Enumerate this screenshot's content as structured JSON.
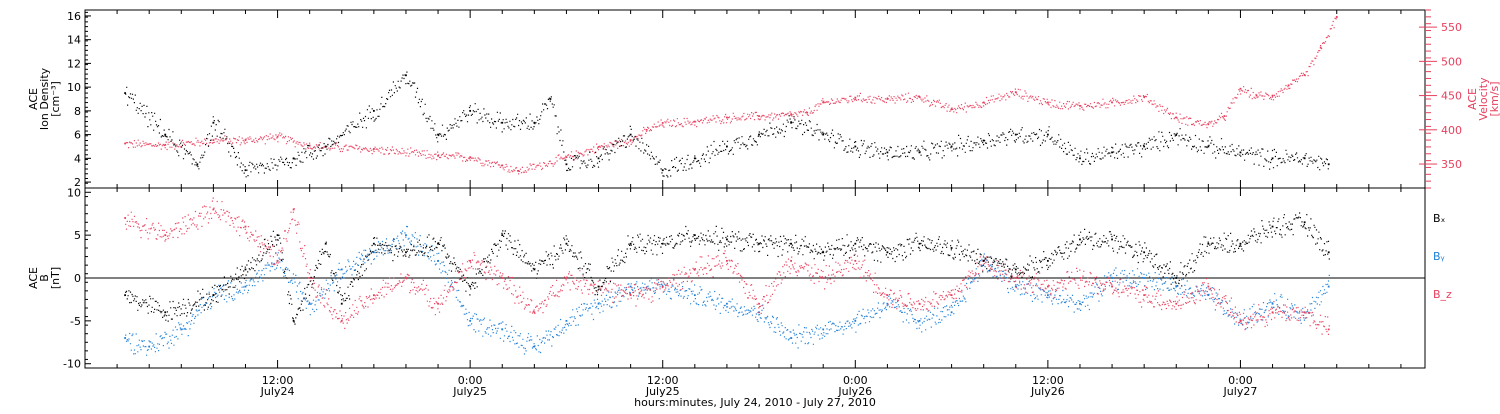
{
  "colors": {
    "black": "#000000",
    "pink": "#e8405e",
    "blue": "#1f7fd6",
    "axis": "#000000"
  },
  "chart_data": [
    {
      "type": "scatter",
      "panel": "top",
      "ylabel_lines": [
        "ACE",
        "Ion Density",
        "[cm⁻³]"
      ],
      "ylabel_right_lines": [
        "ACE",
        "Velocity",
        "[km/s]"
      ],
      "ylim": [
        1.5,
        16.5
      ],
      "yticks": [
        2,
        4,
        6,
        8,
        10,
        12,
        14,
        16
      ],
      "ylim_right": [
        315,
        575
      ],
      "yticks_right": [
        350,
        400,
        450,
        500,
        550
      ],
      "series": [
        {
          "key": "density",
          "color": "black",
          "x": [
            2.5,
            5,
            7,
            8,
            10,
            13,
            15,
            18,
            20,
            22,
            24,
            26,
            28,
            29,
            30,
            32,
            34,
            36,
            38,
            40,
            42,
            44,
            46,
            48,
            50,
            52,
            54,
            56,
            58,
            60,
            62,
            64,
            66,
            68,
            70,
            72,
            74,
            76,
            77.5
          ],
          "y": [
            9.5,
            6,
            3.5,
            7,
            3,
            4,
            5,
            8,
            11,
            6,
            8,
            7,
            7,
            9,
            3.5,
            4,
            6,
            3,
            4,
            5,
            6,
            7,
            6,
            5,
            4.5,
            4.5,
            5,
            5.5,
            6,
            6,
            4,
            4.5,
            5,
            6,
            5,
            4.5,
            4,
            4,
            3.5
          ]
        },
        {
          "key": "velocity",
          "color": "pink",
          "axis": "right",
          "x": [
            2.5,
            5,
            8,
            10,
            12,
            14,
            18,
            22,
            24,
            26,
            27,
            30,
            32,
            34,
            35,
            36,
            38,
            40,
            42,
            44,
            45,
            46,
            48,
            50,
            52,
            54,
            56,
            58,
            60,
            62,
            64,
            66,
            68,
            70,
            71,
            72,
            73,
            74,
            75,
            76,
            77,
            78
          ],
          "y": [
            380,
            378,
            385,
            385,
            390,
            377,
            372,
            362,
            360,
            348,
            340,
            360,
            375,
            385,
            400,
            410,
            412,
            418,
            420,
            422,
            425,
            440,
            447,
            445,
            448,
            430,
            440,
            455,
            440,
            435,
            440,
            448,
            418,
            408,
            420,
            460,
            450,
            450,
            465,
            480,
            520,
            565
          ]
        }
      ]
    },
    {
      "type": "scatter",
      "panel": "bottom",
      "ylabel_lines": [
        "ACE",
        "B",
        "[nT]"
      ],
      "ylim": [
        -10.5,
        10.5
      ],
      "yticks": [
        -10,
        -5,
        0,
        5,
        10
      ],
      "series": [
        {
          "name": "Bₓ",
          "color": "black",
          "x": [
            2.5,
            5,
            8,
            10,
            12,
            13,
            15,
            16,
            18,
            20,
            22,
            24,
            26,
            28,
            30,
            32,
            34,
            36,
            38,
            40,
            42,
            44,
            46,
            48,
            50,
            52,
            54,
            56,
            58,
            60,
            62,
            64,
            66,
            68,
            70,
            72,
            74,
            76,
            77.5
          ],
          "y": [
            -2,
            -4,
            -2,
            1,
            5,
            -5,
            4,
            -3,
            4,
            3,
            4,
            -1,
            5,
            1,
            4,
            -1,
            4,
            4,
            5,
            4.5,
            4,
            4,
            3,
            4,
            3,
            4,
            3.5,
            2,
            1,
            2,
            4.5,
            4.5,
            3,
            0,
            4,
            4,
            6,
            6.5,
            3
          ]
        },
        {
          "name": "Bᵧ",
          "color": "blue",
          "x": [
            2.5,
            4,
            6,
            8,
            10,
            12,
            14,
            16,
            18,
            20,
            22,
            24,
            26,
            28,
            30,
            32,
            34,
            36,
            38,
            40,
            42,
            44,
            46,
            48,
            50,
            52,
            54,
            56,
            58,
            60,
            62,
            64,
            66,
            68,
            70,
            72,
            74,
            76,
            77.5
          ],
          "y": [
            -7,
            -8,
            -6,
            -2,
            -1,
            2,
            -3,
            1,
            3,
            5,
            2,
            -5,
            -6,
            -8,
            -5,
            -3,
            -1,
            -1,
            -2,
            -3,
            -4,
            -7,
            -6,
            -5,
            -3,
            -5,
            -4,
            2,
            -1,
            -2,
            -3,
            0,
            0,
            -1,
            -2,
            -5,
            -3,
            -4,
            -1
          ]
        },
        {
          "name": "B_z",
          "color": "pink",
          "x": [
            2.5,
            5,
            8,
            10,
            12,
            13,
            14,
            16,
            18,
            20,
            22,
            24,
            26,
            28,
            30,
            32,
            34,
            36,
            38,
            40,
            42,
            44,
            46,
            48,
            50,
            52,
            54,
            56,
            58,
            60,
            62,
            64,
            66,
            68,
            70,
            72,
            74,
            76,
            77.5
          ],
          "y": [
            7,
            5,
            8,
            6,
            2,
            8,
            0,
            -5,
            -2,
            0,
            -3,
            2,
            0,
            -4,
            0,
            -1,
            -2,
            -1,
            1,
            2,
            -3,
            2,
            0,
            2,
            -2,
            -3,
            -2,
            2,
            0,
            -1,
            0,
            -1,
            -2,
            -3,
            -1,
            -5,
            -4,
            -4,
            -6
          ]
        }
      ]
    },
    {
      "type": "axis",
      "xlabel": "hours:minutes, July 24, 2010 - July 27, 2010",
      "xlim": [
        0,
        83.5
      ],
      "tick_labels": [
        {
          "x": 12,
          "time": "12:00",
          "day": "July24"
        },
        {
          "x": 24,
          "time": "0:00",
          "day": "July25"
        },
        {
          "x": 36,
          "time": "12:00",
          "day": "July25"
        },
        {
          "x": 48,
          "time": "0:00",
          "day": "July26"
        },
        {
          "x": 60,
          "time": "12:00",
          "day": "July26"
        },
        {
          "x": 72,
          "time": "0:00",
          "day": "July27"
        }
      ],
      "minor_tick_step": 2
    }
  ]
}
